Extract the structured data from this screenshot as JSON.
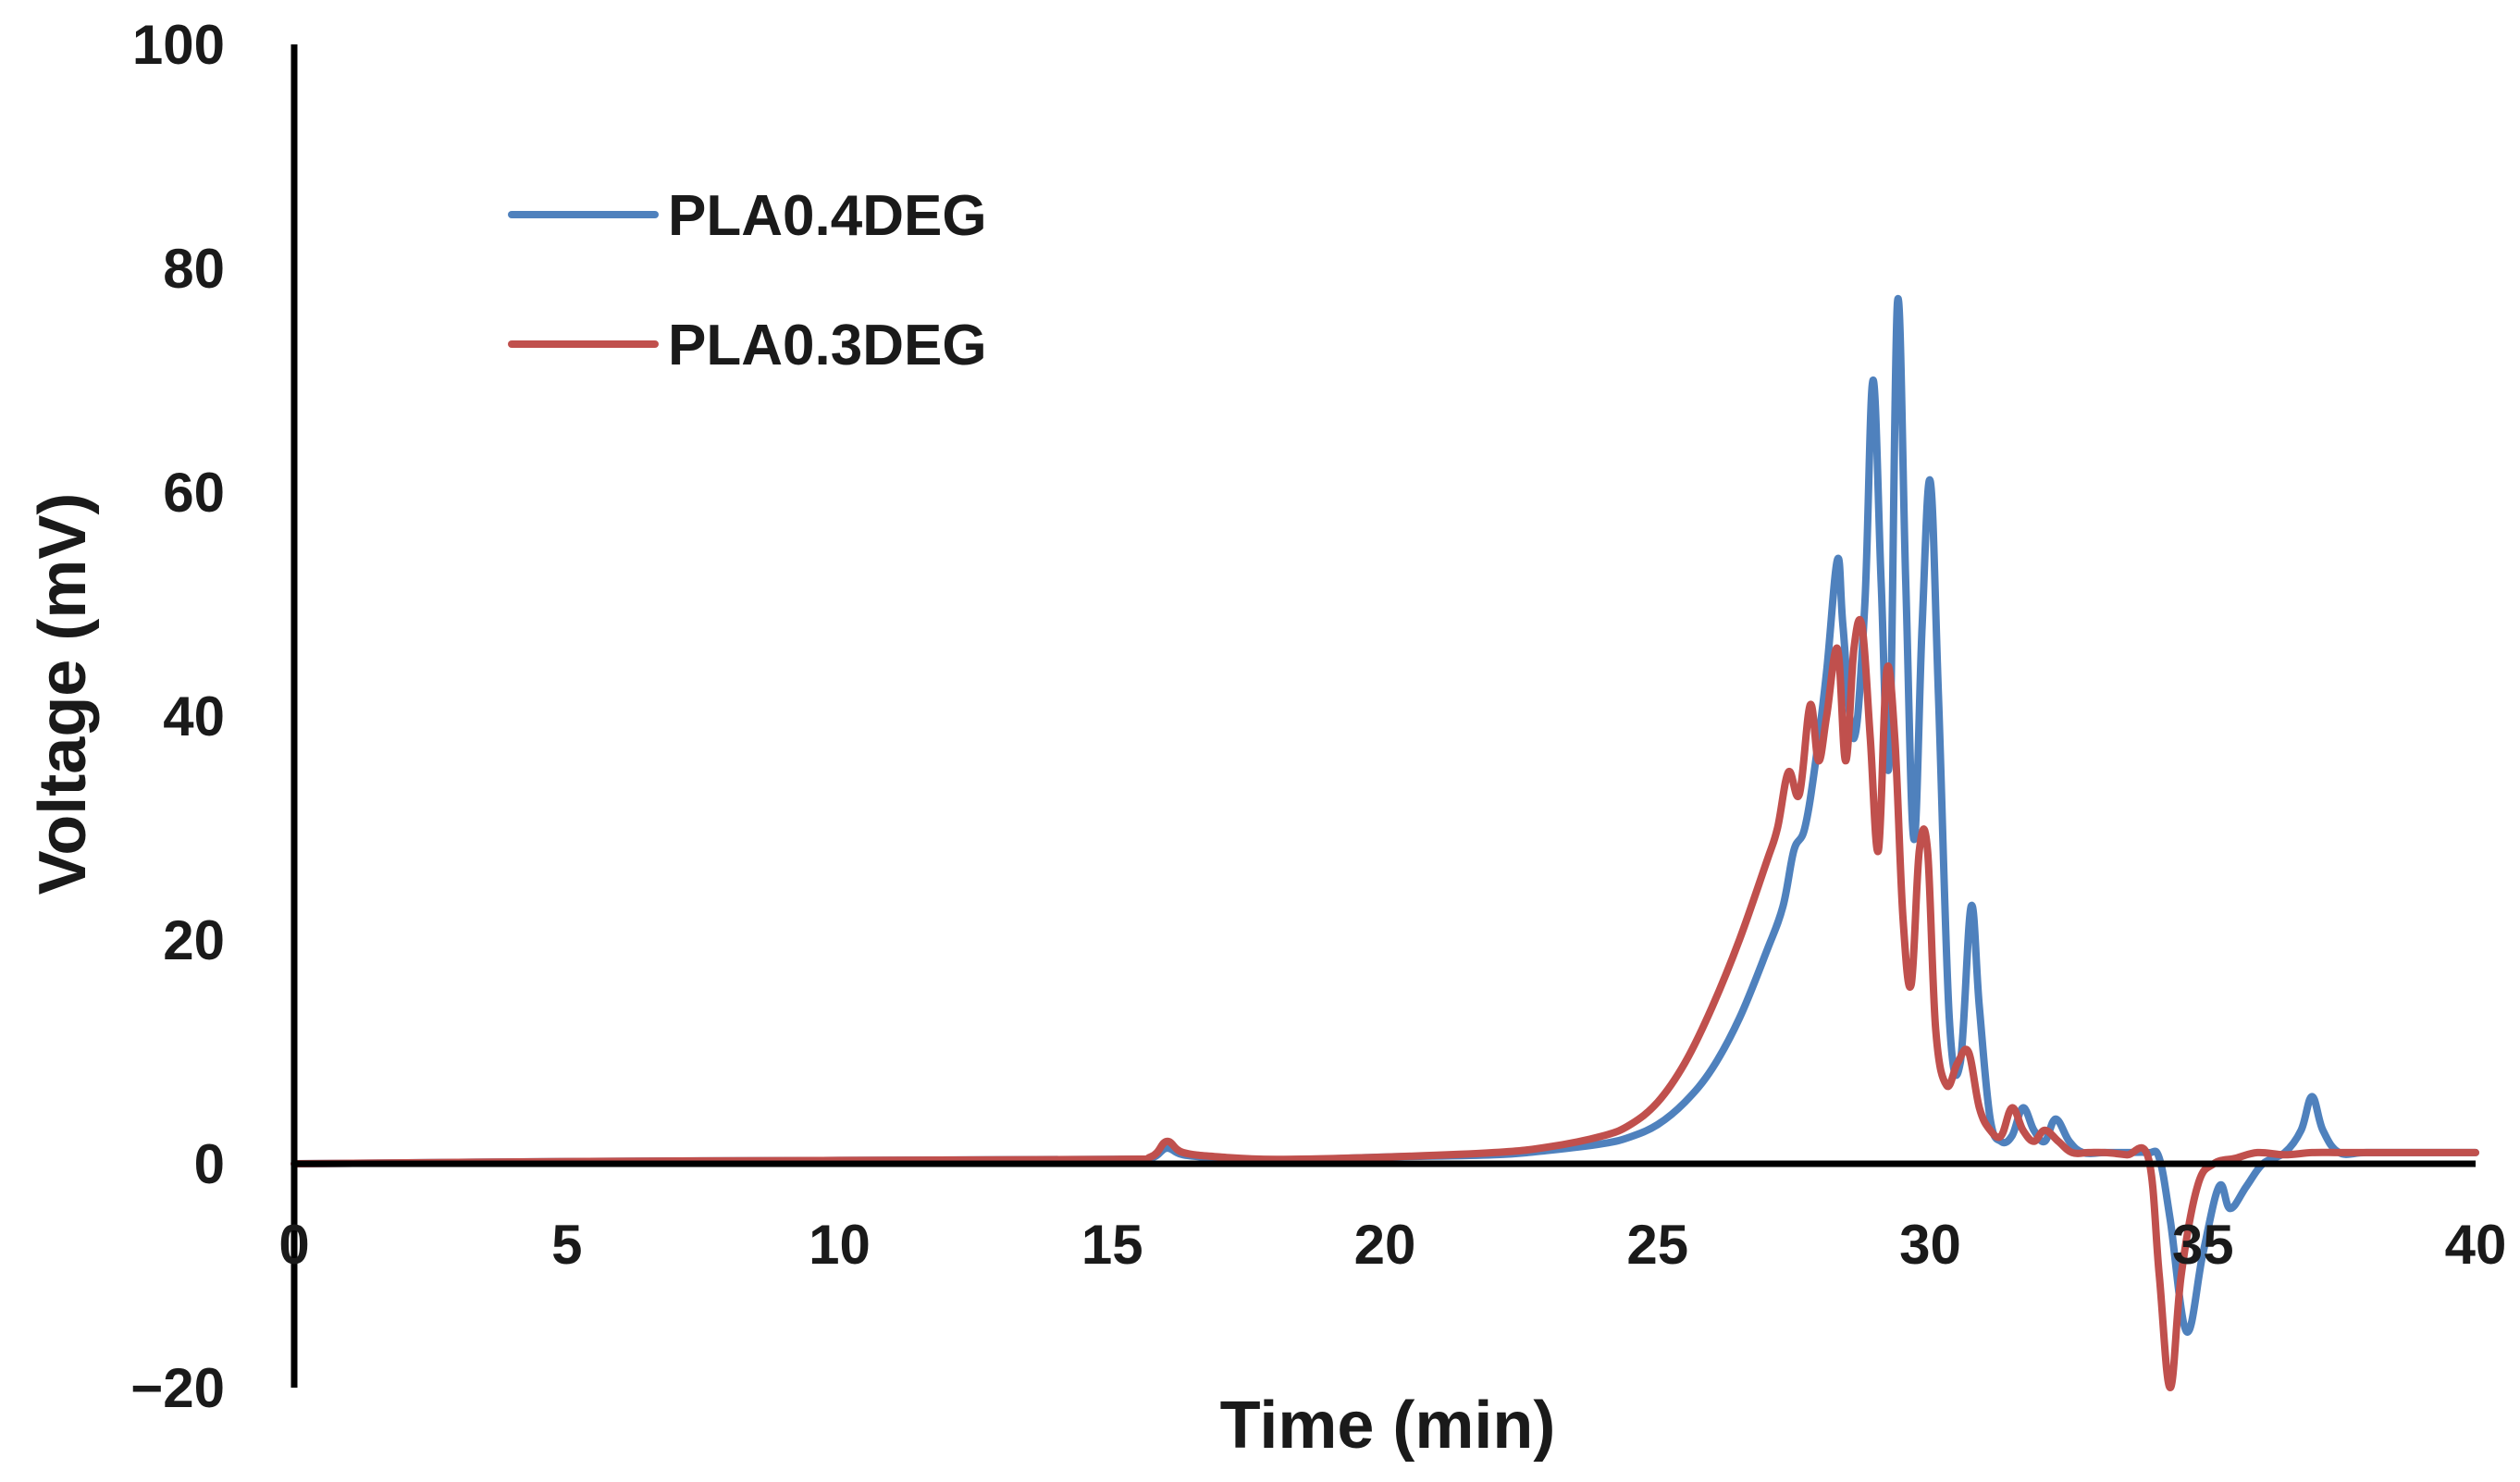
{
  "chart_data": {
    "type": "line",
    "title": "",
    "xlabel": "Time (min)",
    "ylabel": "Voltage (mV)",
    "xlim": [
      0,
      40
    ],
    "ylim": [
      -20,
      100
    ],
    "xticks": [
      0,
      5,
      10,
      15,
      20,
      25,
      30,
      35,
      40
    ],
    "yticks": [
      100,
      80,
      60,
      40,
      20,
      0,
      -20
    ],
    "ytick_labels": [
      "100",
      "80",
      "60",
      "40",
      "20",
      "0",
      "−20"
    ],
    "legend_position": "top-left",
    "grid": false,
    "series": [
      {
        "name": "PLA0.4DEG",
        "color": "#4F81BD",
        "x": [
          0,
          5,
          10,
          15,
          15.7,
          16.0,
          16.3,
          17,
          18,
          20,
          22,
          23,
          24,
          24.5,
          25,
          25.5,
          26,
          26.5,
          27,
          27.3,
          27.5,
          27.7,
          27.9,
          28.1,
          28.3,
          28.4,
          28.6,
          28.8,
          28.95,
          29.1,
          29.25,
          29.4,
          29.55,
          29.7,
          29.85,
          30.0,
          30.15,
          30.35,
          30.55,
          30.75,
          30.9,
          31.1,
          31.3,
          31.5,
          31.7,
          31.9,
          32.1,
          32.3,
          32.55,
          32.8,
          33.2,
          33.6,
          34.0,
          34.2,
          34.4,
          34.7,
          35.0,
          35.3,
          35.5,
          35.8,
          36.1,
          36.5,
          36.8,
          37.0,
          37.2,
          37.5,
          38,
          39,
          40
        ],
        "y": [
          0,
          0.2,
          0.3,
          0.4,
          0.5,
          1.4,
          0.8,
          0.5,
          0.3,
          0.6,
          0.8,
          1.2,
          1.8,
          2.4,
          3.5,
          5.5,
          8.5,
          13,
          19,
          23,
          28,
          30,
          36,
          44,
          54,
          48,
          38,
          50,
          70,
          52,
          36,
          77,
          52,
          29,
          48,
          61,
          42,
          13,
          9,
          23,
          14,
          4,
          2,
          2.5,
          5,
          3,
          2,
          4,
          2,
          1,
          1,
          1,
          1,
          0.5,
          -5,
          -15,
          -8,
          -2,
          -4,
          -2,
          0,
          1,
          3,
          6,
          3,
          1,
          1,
          1,
          1
        ]
      },
      {
        "name": "PLA0.3DEG",
        "color": "#C0504D",
        "x": [
          0,
          5,
          10,
          15,
          15.7,
          16.0,
          16.3,
          17,
          18,
          20,
          22,
          23,
          24,
          24.5,
          25,
          25.5,
          26,
          26.5,
          27,
          27.2,
          27.4,
          27.6,
          27.8,
          27.95,
          28.1,
          28.3,
          28.45,
          28.6,
          28.75,
          28.9,
          29.05,
          29.2,
          29.35,
          29.5,
          29.65,
          29.8,
          29.95,
          30.1,
          30.3,
          30.5,
          30.7,
          30.9,
          31.1,
          31.3,
          31.5,
          31.7,
          31.9,
          32.1,
          32.35,
          32.6,
          32.9,
          33.2,
          33.6,
          34.0,
          34.2,
          34.4,
          34.6,
          34.9,
          35.2,
          35.6,
          36,
          36.5,
          37.0,
          37.5,
          38,
          39,
          40
        ],
        "y": [
          0,
          0.2,
          0.3,
          0.4,
          0.6,
          2.0,
          1.0,
          0.6,
          0.4,
          0.6,
          1.0,
          1.5,
          2.5,
          3.5,
          5.5,
          9,
          14,
          20,
          27,
          30,
          35,
          33,
          41,
          36,
          40,
          46,
          36,
          46,
          48,
          38,
          28,
          44,
          38,
          22,
          16,
          28,
          28,
          12,
          7,
          9,
          10,
          5,
          3,
          2.5,
          5,
          3,
          2,
          3,
          2,
          1,
          1,
          1,
          0.8,
          0.5,
          -10,
          -20,
          -10,
          -2,
          0,
          0.5,
          1,
          0.8,
          1,
          1,
          1,
          1,
          1
        ]
      }
    ]
  }
}
